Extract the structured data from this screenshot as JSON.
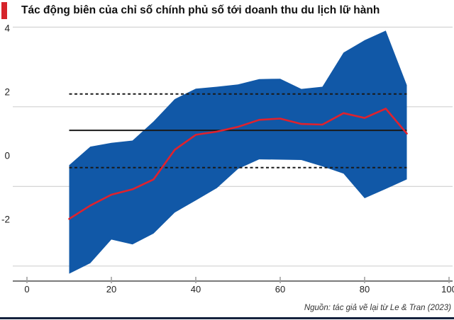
{
  "header": {
    "title": "Tác động biên của chỉ số chính phủ số tới doanh thu du lịch lữ hành"
  },
  "footer": {
    "source": "Nguồn: tác giả vẽ lại từ Le & Tran (2023)"
  },
  "colors": {
    "accent_bar": "#d6232a",
    "band_blue": "#1158a7",
    "line_red": "#e0222d",
    "reference_black": "#1a1a1a",
    "grid_gray": "#d0d0d0",
    "axis_gray": "#7a7a7a",
    "tick_gray": "#9a9a9a",
    "label_dark": "#222222",
    "bottom_rule_navy": "#14213d"
  },
  "chart_data": {
    "type": "area",
    "title": "Tác động biên của chỉ số chính phủ số tới doanh thu du lịch lữ hành",
    "source": "Nguồn: tác giả vẽ lại từ Le & Tran (2023)",
    "x": [
      10,
      15,
      20,
      25,
      30,
      35,
      40,
      45,
      50,
      55,
      60,
      65,
      70,
      75,
      80,
      85,
      90
    ],
    "series": [
      {
        "name": "marginal-effect",
        "values": [
          -2.02,
          -1.6,
          -1.26,
          -1.09,
          -0.78,
          0.15,
          0.62,
          0.72,
          0.87,
          1.09,
          1.13,
          0.96,
          0.94,
          1.3,
          1.15,
          1.44,
          0.66
        ]
      },
      {
        "name": "ci-upper",
        "values": [
          -0.33,
          0.25,
          0.37,
          0.44,
          1.04,
          1.74,
          2.07,
          2.13,
          2.2,
          2.37,
          2.38,
          2.06,
          2.13,
          3.2,
          3.59,
          3.89,
          2.18
        ]
      },
      {
        "name": "ci-lower",
        "values": [
          -3.74,
          -3.41,
          -2.67,
          -2.82,
          -2.48,
          -1.82,
          -1.44,
          -1.05,
          -0.45,
          -0.15,
          -0.16,
          -0.17,
          -0.37,
          -0.6,
          -1.37,
          -1.08,
          -0.78
        ]
      }
    ],
    "reference_lines": {
      "solid_mean": 0.76,
      "dotted_upper": 1.9,
      "dotted_lower": -0.41
    },
    "x_ticks": [
      0,
      20,
      40,
      60,
      80,
      100
    ],
    "y_ticks": [
      4,
      2,
      0,
      -2
    ],
    "gridline_values": [
      4,
      1.5,
      -1,
      -3.5
    ],
    "xlim": [
      0,
      101
    ],
    "ylim": [
      -4,
      4.6
    ],
    "grid": true,
    "legend": false
  }
}
